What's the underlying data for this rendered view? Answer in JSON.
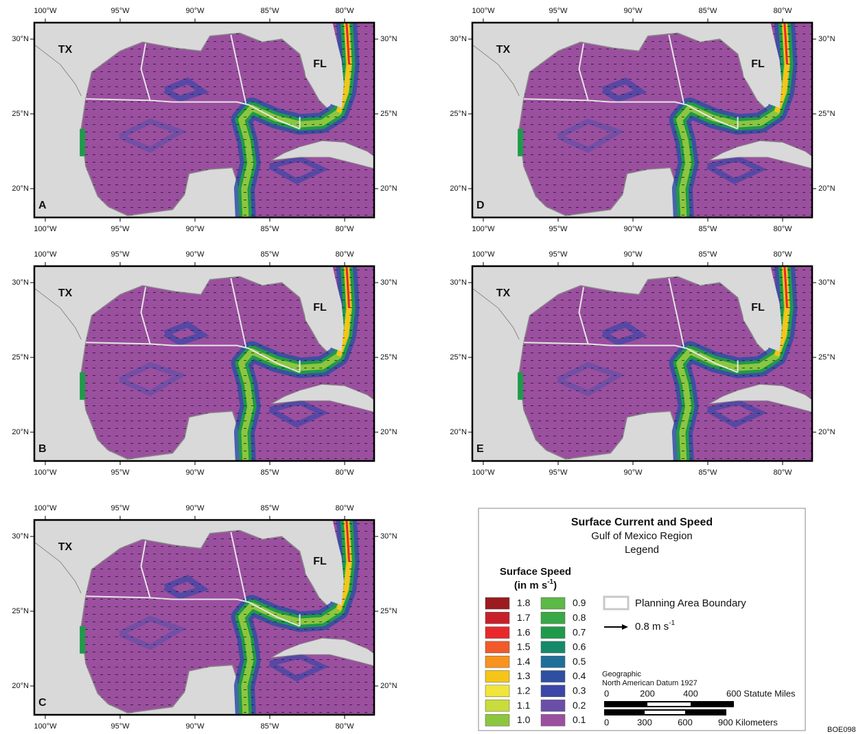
{
  "panels": [
    {
      "letter": "A",
      "states": [
        "TX",
        "FL"
      ]
    },
    {
      "letter": "D",
      "states": [
        "TX",
        "FL"
      ]
    },
    {
      "letter": "B",
      "states": [
        "TX",
        "FL"
      ]
    },
    {
      "letter": "E",
      "states": [
        "TX",
        "FL"
      ]
    },
    {
      "letter": "C",
      "states": [
        "TX",
        "FL"
      ]
    }
  ],
  "lon_ticks": [
    {
      "value": 100,
      "label": "100°W"
    },
    {
      "value": 95,
      "label": "95°W"
    },
    {
      "value": 90,
      "label": "90°W"
    },
    {
      "value": 85,
      "label": "85°W"
    },
    {
      "value": 80,
      "label": "80°W"
    }
  ],
  "lat_ticks": [
    {
      "value": 30,
      "label": "30°N"
    },
    {
      "value": 25,
      "label": "25°N"
    },
    {
      "value": 20,
      "label": "20°N"
    }
  ],
  "legend": {
    "title": "Surface Current and Speed",
    "subtitle": "Gulf of Mexico Region",
    "heading": "Legend",
    "speed_title": "Surface Speed",
    "speed_unit": [
      "(in m s",
      "-1",
      ")"
    ],
    "speed_classes": [
      {
        "label": "1.8",
        "color": "#9b1b1e"
      },
      {
        "label": "1.7",
        "color": "#c8202a"
      },
      {
        "label": "1.6",
        "color": "#e8282c"
      },
      {
        "label": "1.5",
        "color": "#f15a2b"
      },
      {
        "label": "1.4",
        "color": "#f7931e"
      },
      {
        "label": "1.3",
        "color": "#f5c518"
      },
      {
        "label": "1.2",
        "color": "#f0e53a"
      },
      {
        "label": "1.1",
        "color": "#c8dc3c"
      },
      {
        "label": "1.0",
        "color": "#8cc63f"
      },
      {
        "label": "0.9",
        "color": "#5cb847"
      },
      {
        "label": "0.8",
        "color": "#3aa845"
      },
      {
        "label": "0.7",
        "color": "#1f9a4a"
      },
      {
        "label": "0.6",
        "color": "#148a6a"
      },
      {
        "label": "0.5",
        "color": "#1f6f9a"
      },
      {
        "label": "0.4",
        "color": "#2e4fa2"
      },
      {
        "label": "0.3",
        "color": "#3c46a8"
      },
      {
        "label": "0.2",
        "color": "#6a4fa8"
      },
      {
        "label": "0.1",
        "color": "#9b4f9f"
      }
    ],
    "boundary_label": "Planning Area Boundary",
    "vector_label": [
      "0.8 m s",
      "-1"
    ],
    "projection": "Geographic",
    "datum": "North American Datum 1927",
    "miles_scale": [
      "0",
      "200",
      "400",
      "600 Statute Miles"
    ],
    "km_scale": [
      "0",
      "300",
      "600",
      "900 Kilometers"
    ]
  },
  "figure_id": "BOE098"
}
